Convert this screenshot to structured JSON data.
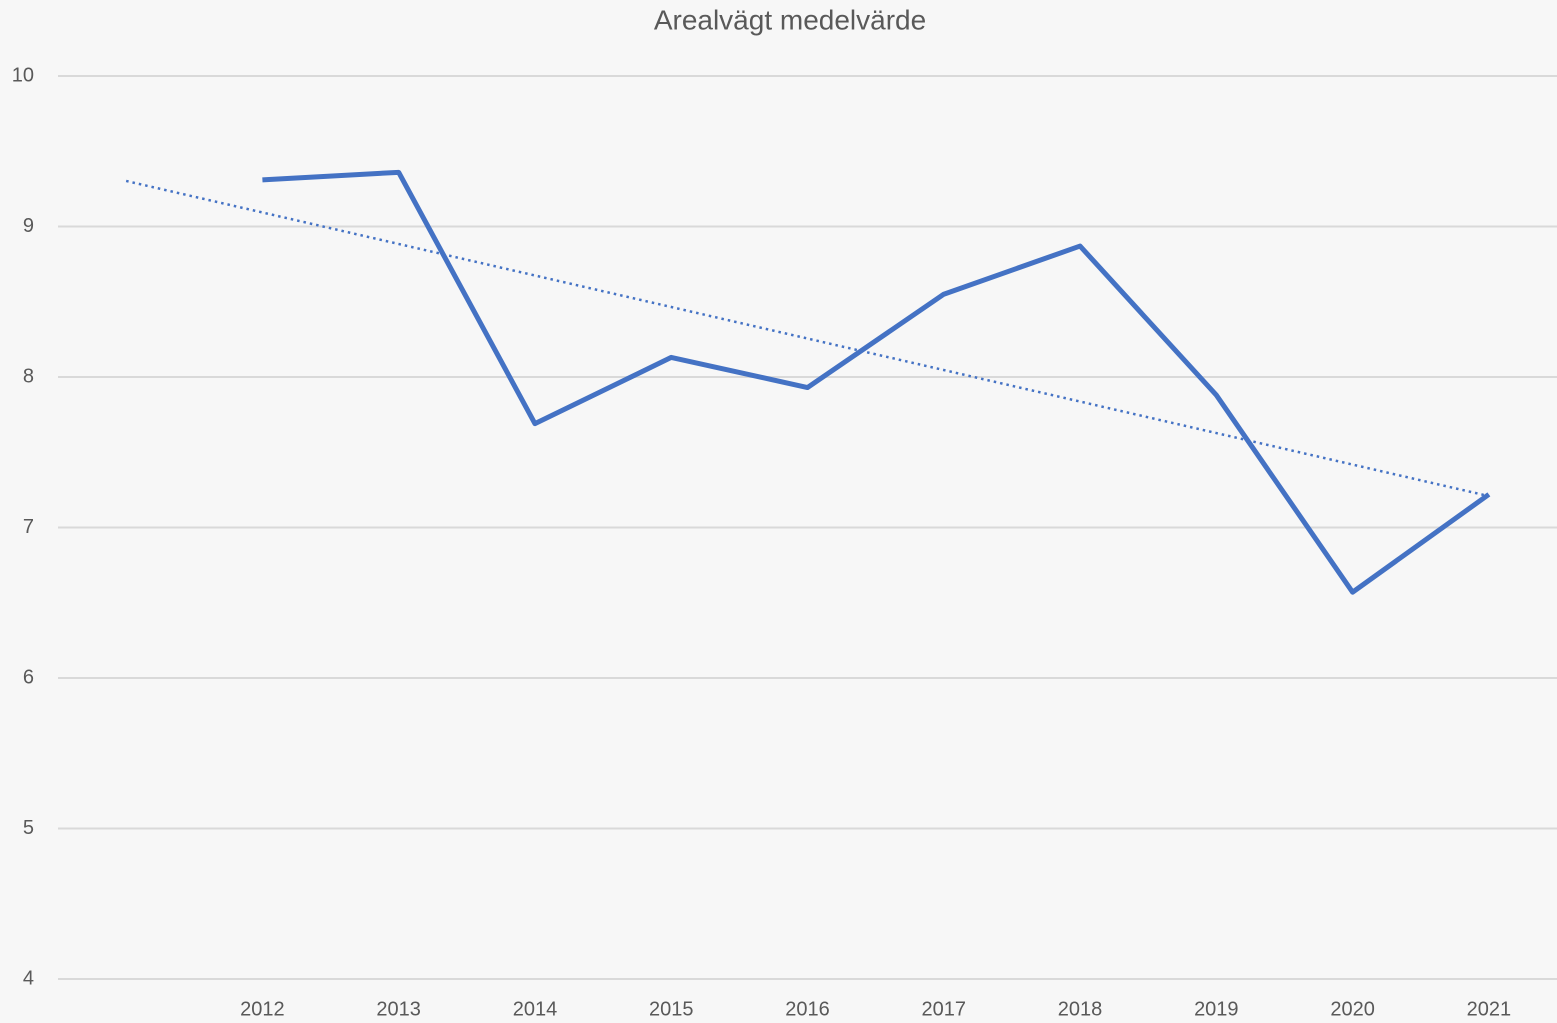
{
  "chart_data": {
    "type": "line",
    "title": "Arealvägt medelvärde",
    "categories": [
      null,
      "2012",
      "2013",
      "2014",
      "2015",
      "2016",
      "2017",
      "2018",
      "2019",
      "2020",
      "2021"
    ],
    "series": [
      {
        "color": "#4472c4",
        "values": [
          null,
          9.31,
          9.36,
          7.69,
          8.13,
          7.93,
          8.55,
          8.87,
          7.88,
          6.57,
          7.22
        ]
      }
    ],
    "trendline": {
      "kind": "linear",
      "style": "dotted",
      "color": "#4472c4"
    },
    "ylim": [
      4,
      10
    ],
    "yticks": [
      4,
      5,
      6,
      7,
      8,
      9,
      10
    ],
    "grid": true
  }
}
